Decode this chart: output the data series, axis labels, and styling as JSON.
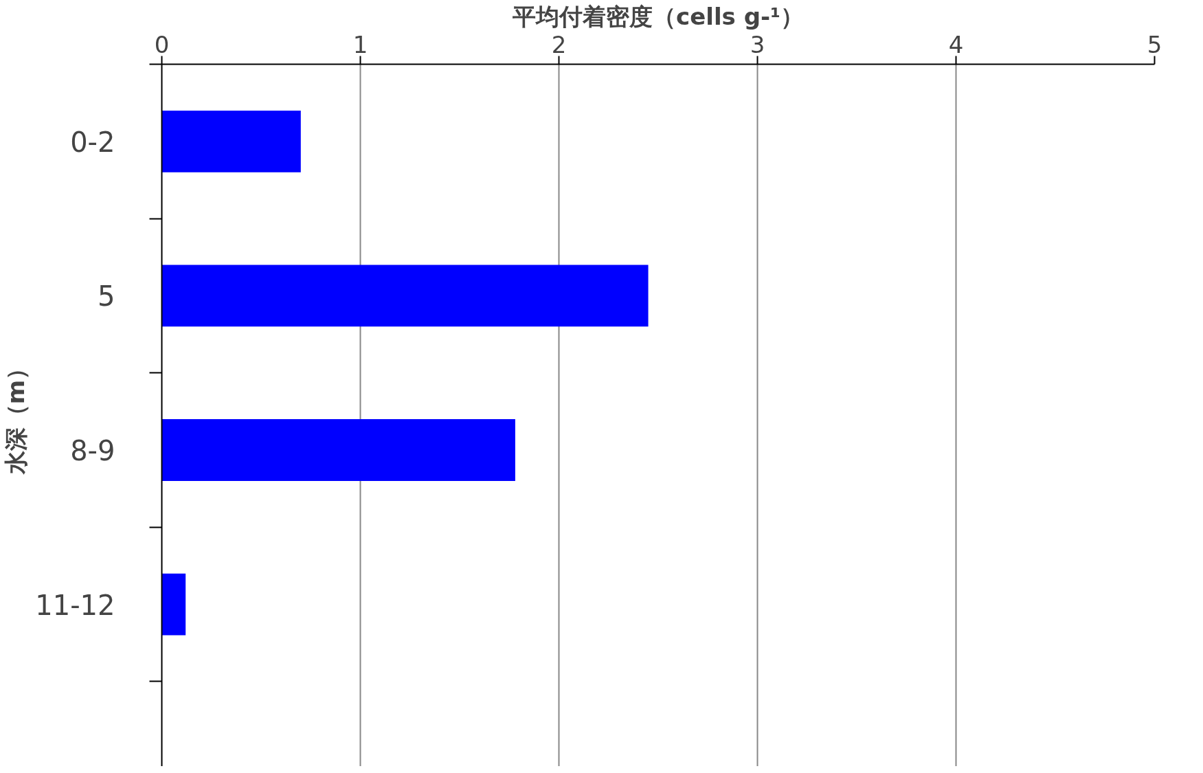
{
  "chart_data": {
    "type": "bar",
    "orientation": "horizontal",
    "xlabel": "平均付着密度（cells g-¹）",
    "ylabel": "水深（m）",
    "categories": [
      "0-2",
      "5",
      "8-9",
      "11-12"
    ],
    "values": [
      0.7,
      2.45,
      1.78,
      0.12
    ],
    "color": "#0000ff",
    "xlim": [
      0,
      5
    ],
    "xticks": [
      0,
      1,
      2,
      3,
      4,
      5
    ],
    "grid": "x"
  }
}
